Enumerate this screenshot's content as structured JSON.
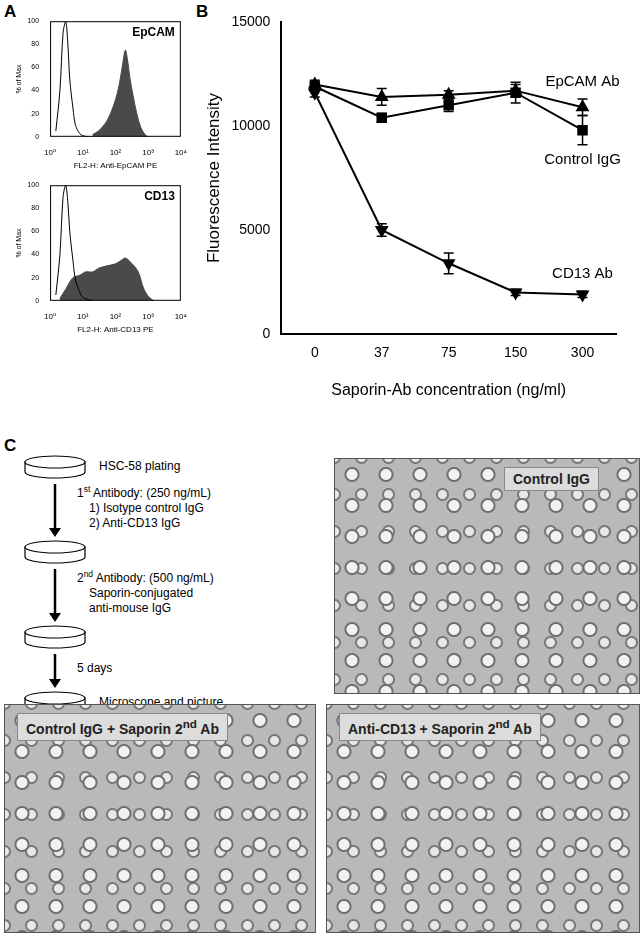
{
  "panel_labels": [
    "A",
    "B",
    "C"
  ],
  "chart_data": [
    {
      "type": "line",
      "title": "EpCAM",
      "x_label": "FL2-H: Anti-EpCAM PE",
      "y_label": "% of Max",
      "log": "x",
      "grid": false,
      "xlim": [
        1,
        10000
      ],
      "xticks": [
        {
          "value": 1,
          "label": "10⁰"
        },
        {
          "value": 10,
          "label": "10¹"
        },
        {
          "value": 100,
          "label": "10²"
        },
        {
          "value": 1000,
          "label": "10³"
        },
        {
          "value": 10000,
          "label": "10⁴"
        }
      ],
      "ylim": [
        0,
        100
      ],
      "yticks": [
        0,
        20,
        40,
        60,
        80,
        100
      ],
      "series": [
        {
          "type": "line",
          "color": "#000000",
          "x": [
            1.5,
            2,
            2.5,
            3,
            3.5,
            4,
            5,
            6,
            8,
            10,
            15
          ],
          "values": [
            5,
            40,
            90,
            100,
            80,
            50,
            25,
            10,
            3,
            1,
            0
          ]
        },
        {
          "type": "area",
          "color": "#4a4a4a",
          "x": [
            20,
            30,
            50,
            70,
            100,
            130,
            160,
            200,
            230,
            280,
            350,
            450,
            600,
            800,
            1000
          ],
          "values": [
            2,
            5,
            12,
            20,
            32,
            45,
            60,
            75,
            68,
            50,
            35,
            20,
            8,
            2,
            0
          ]
        }
      ]
    },
    {
      "type": "line",
      "title": "CD13",
      "x_label": "FL2-H: Anti-CD13 PE",
      "y_label": "% of Max",
      "log": "x",
      "grid": false,
      "xlim": [
        1,
        10000
      ],
      "xticks": [
        {
          "value": 1,
          "label": "10⁰"
        },
        {
          "value": 10,
          "label": "10¹"
        },
        {
          "value": 100,
          "label": "10²"
        },
        {
          "value": 1000,
          "label": "10³"
        },
        {
          "value": 10000,
          "label": "10⁴"
        }
      ],
      "ylim": [
        0,
        100
      ],
      "yticks": [
        0,
        20,
        40,
        60,
        80,
        100
      ],
      "series": [
        {
          "type": "line",
          "color": "#000000",
          "x": [
            1.5,
            2,
            2.5,
            3,
            3.5,
            4,
            5,
            6,
            8,
            10,
            15,
            20
          ],
          "values": [
            5,
            40,
            90,
            100,
            85,
            60,
            35,
            18,
            8,
            3,
            1,
            0
          ]
        },
        {
          "type": "area",
          "color": "#4a4a4a",
          "x": [
            2,
            3,
            5,
            8,
            12,
            20,
            30,
            50,
            100,
            150,
            200,
            300,
            500,
            700,
            1000,
            1500
          ],
          "values": [
            2,
            10,
            20,
            22,
            25,
            25,
            28,
            30,
            32,
            35,
            37,
            33,
            25,
            12,
            4,
            0
          ]
        }
      ]
    },
    {
      "type": "line",
      "x_label": "Saporin-Ab concentration (ng/ml)",
      "y_label": "Fluorescence Intensity",
      "grid": false,
      "categories": [
        "0",
        "37",
        "75",
        "150",
        "300"
      ],
      "ylim": [
        0,
        15000
      ],
      "yticks": [
        0,
        5000,
        10000,
        15000
      ],
      "series": [
        {
          "name": "EpCAM Ab",
          "color": "#000000",
          "marker": "triangle",
          "values": [
            12000,
            11400,
            11500,
            11700,
            10900
          ],
          "errors": [
            200,
            400,
            200,
            300,
            400
          ]
        },
        {
          "name": "Control IgG",
          "color": "#000000",
          "marker": "square",
          "values": [
            11900,
            10400,
            11000,
            11600,
            9800
          ],
          "errors": [
            200,
            200,
            300,
            500,
            700
          ]
        },
        {
          "name": "CD13 Ab",
          "color": "#000000",
          "marker": "triangle_down",
          "values": [
            11600,
            5000,
            3400,
            2000,
            1900
          ],
          "errors": [
            200,
            300,
            500,
            150,
            150
          ]
        }
      ]
    }
  ],
  "diagram": {
    "flow": [
      {
        "kind": "dish",
        "label": "HSC-58 plating"
      },
      {
        "kind": "arrow",
        "lines": [
          "1st Antibody: (250 ng/mL)",
          "1) Isotype control IgG",
          "2) Anti-CD13 IgG"
        ]
      },
      {
        "kind": "dish"
      },
      {
        "kind": "arrow",
        "lines": [
          "2nd Antibody: (500 ng/mL)",
          "Saporin-conjugated",
          "anti-mouse IgG"
        ]
      },
      {
        "kind": "dish"
      },
      {
        "kind": "arrow",
        "lines": [
          "5 days"
        ]
      },
      {
        "kind": "dish",
        "label": "Microscope and picture"
      }
    ],
    "photos": [
      {
        "label": "Control IgG"
      },
      {
        "label": "Control IgG + Saporin 2nd Ab"
      },
      {
        "label": "Anti-CD13 + Saporin 2nd Ab"
      }
    ]
  }
}
